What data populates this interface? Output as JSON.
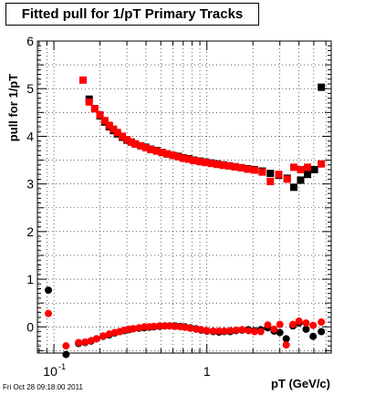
{
  "chart_data": {
    "type": "scatter",
    "title": "Fitted pull for 1/pT  Primary Tracks",
    "xlabel": "pT (GeV/c)",
    "ylabel": "pull for 1/pT",
    "xscale": "log",
    "xlim": [
      0.078,
      6.5
    ],
    "ylim": [
      -0.55,
      6.0
    ],
    "xtick_labels": [
      {
        "value": 0.1,
        "base": "10",
        "exp": "-1"
      },
      {
        "value": 1,
        "base": "1",
        "exp": ""
      }
    ],
    "yticks": [
      0,
      1,
      2,
      3,
      4,
      5,
      6
    ],
    "grid": true,
    "series": [
      {
        "color": "#000000",
        "marker": "square",
        "points": [
          [
            0.17,
            4.78
          ],
          [
            0.185,
            4.58
          ],
          [
            0.2,
            4.43
          ],
          [
            0.215,
            4.3
          ],
          [
            0.23,
            4.2
          ],
          [
            0.245,
            4.12
          ],
          [
            0.26,
            4.05
          ],
          [
            0.28,
            3.98
          ],
          [
            0.3,
            3.92
          ],
          [
            0.32,
            3.88
          ],
          [
            0.34,
            3.84
          ],
          [
            0.37,
            3.8
          ],
          [
            0.4,
            3.77
          ],
          [
            0.43,
            3.73
          ],
          [
            0.47,
            3.7
          ],
          [
            0.51,
            3.66
          ],
          [
            0.55,
            3.63
          ],
          [
            0.6,
            3.6
          ],
          [
            0.65,
            3.58
          ],
          [
            0.7,
            3.55
          ],
          [
            0.76,
            3.53
          ],
          [
            0.82,
            3.5
          ],
          [
            0.9,
            3.48
          ],
          [
            0.98,
            3.46
          ],
          [
            1.07,
            3.44
          ],
          [
            1.17,
            3.42
          ],
          [
            1.28,
            3.4
          ],
          [
            1.4,
            3.38
          ],
          [
            1.53,
            3.36
          ],
          [
            1.68,
            3.34
          ],
          [
            1.85,
            3.32
          ],
          [
            2.05,
            3.3
          ],
          [
            2.3,
            3.27
          ],
          [
            2.6,
            3.22
          ],
          [
            2.95,
            3.18
          ],
          [
            3.35,
            3.12
          ],
          [
            3.7,
            2.93
          ],
          [
            4.1,
            3.08
          ],
          [
            4.55,
            3.2
          ],
          [
            5.05,
            3.3
          ],
          [
            5.6,
            5.03
          ]
        ]
      },
      {
        "color": "#ff0000",
        "marker": "square",
        "points": [
          [
            0.155,
            5.18
          ],
          [
            0.17,
            4.72
          ],
          [
            0.185,
            4.58
          ],
          [
            0.2,
            4.45
          ],
          [
            0.215,
            4.33
          ],
          [
            0.23,
            4.23
          ],
          [
            0.245,
            4.15
          ],
          [
            0.26,
            4.08
          ],
          [
            0.28,
            4.0
          ],
          [
            0.3,
            3.93
          ],
          [
            0.32,
            3.88
          ],
          [
            0.34,
            3.84
          ],
          [
            0.37,
            3.8
          ],
          [
            0.4,
            3.76
          ],
          [
            0.43,
            3.72
          ],
          [
            0.47,
            3.69
          ],
          [
            0.51,
            3.66
          ],
          [
            0.55,
            3.63
          ],
          [
            0.6,
            3.6
          ],
          [
            0.65,
            3.57
          ],
          [
            0.7,
            3.54
          ],
          [
            0.76,
            3.52
          ],
          [
            0.82,
            3.49
          ],
          [
            0.9,
            3.47
          ],
          [
            0.98,
            3.45
          ],
          [
            1.07,
            3.43
          ],
          [
            1.17,
            3.41
          ],
          [
            1.28,
            3.39
          ],
          [
            1.4,
            3.38
          ],
          [
            1.53,
            3.36
          ],
          [
            1.68,
            3.34
          ],
          [
            1.85,
            3.31
          ],
          [
            2.05,
            3.29
          ],
          [
            2.3,
            3.25
          ],
          [
            2.6,
            3.05
          ],
          [
            2.95,
            3.2
          ],
          [
            3.35,
            3.1
          ],
          [
            3.7,
            3.35
          ],
          [
            4.1,
            3.3
          ],
          [
            4.55,
            3.35
          ],
          [
            5.6,
            3.42
          ]
        ]
      },
      {
        "color": "#000000",
        "marker": "circle",
        "points": [
          [
            0.092,
            0.77
          ],
          [
            0.12,
            -0.58
          ],
          [
            0.145,
            -0.35
          ],
          [
            0.16,
            -0.33
          ],
          [
            0.175,
            -0.3
          ],
          [
            0.19,
            -0.25
          ],
          [
            0.21,
            -0.2
          ],
          [
            0.23,
            -0.17
          ],
          [
            0.25,
            -0.13
          ],
          [
            0.27,
            -0.1
          ],
          [
            0.29,
            -0.08
          ],
          [
            0.31,
            -0.06
          ],
          [
            0.33,
            -0.04
          ],
          [
            0.36,
            -0.03
          ],
          [
            0.39,
            -0.02
          ],
          [
            0.42,
            -0.01
          ],
          [
            0.45,
            0.0
          ],
          [
            0.49,
            0.01
          ],
          [
            0.53,
            0.02
          ],
          [
            0.57,
            0.02
          ],
          [
            0.62,
            0.02
          ],
          [
            0.67,
            0.01
          ],
          [
            0.72,
            0.0
          ],
          [
            0.78,
            -0.02
          ],
          [
            0.85,
            -0.04
          ],
          [
            0.92,
            -0.07
          ],
          [
            1.0,
            -0.09
          ],
          [
            1.1,
            -0.1
          ],
          [
            1.2,
            -0.11
          ],
          [
            1.3,
            -0.1
          ],
          [
            1.42,
            -0.1
          ],
          [
            1.55,
            -0.08
          ],
          [
            1.7,
            -0.07
          ],
          [
            1.87,
            -0.06
          ],
          [
            2.05,
            -0.08
          ],
          [
            2.25,
            -0.06
          ],
          [
            2.5,
            -0.02
          ],
          [
            2.75,
            -0.09
          ],
          [
            3.0,
            -0.12
          ],
          [
            3.3,
            -0.25
          ],
          [
            3.65,
            0.02
          ],
          [
            4.0,
            0.08
          ],
          [
            4.45,
            -0.05
          ],
          [
            4.95,
            -0.2
          ],
          [
            5.6,
            -0.1
          ]
        ]
      },
      {
        "color": "#ff0000",
        "marker": "circle",
        "points": [
          [
            0.092,
            0.28
          ],
          [
            0.12,
            -0.4
          ],
          [
            0.145,
            -0.33
          ],
          [
            0.16,
            -0.32
          ],
          [
            0.175,
            -0.29
          ],
          [
            0.19,
            -0.25
          ],
          [
            0.21,
            -0.19
          ],
          [
            0.23,
            -0.15
          ],
          [
            0.25,
            -0.12
          ],
          [
            0.27,
            -0.1
          ],
          [
            0.29,
            -0.07
          ],
          [
            0.31,
            -0.05
          ],
          [
            0.33,
            -0.04
          ],
          [
            0.36,
            -0.02
          ],
          [
            0.39,
            0.0
          ],
          [
            0.42,
            0.0
          ],
          [
            0.45,
            0.01
          ],
          [
            0.49,
            0.02
          ],
          [
            0.53,
            0.02
          ],
          [
            0.57,
            0.02
          ],
          [
            0.62,
            0.01
          ],
          [
            0.67,
            0.0
          ],
          [
            0.72,
            -0.01
          ],
          [
            0.78,
            -0.03
          ],
          [
            0.85,
            -0.05
          ],
          [
            0.92,
            -0.06
          ],
          [
            1.0,
            -0.08
          ],
          [
            1.1,
            -0.09
          ],
          [
            1.2,
            -0.09
          ],
          [
            1.3,
            -0.09
          ],
          [
            1.42,
            -0.08
          ],
          [
            1.55,
            -0.07
          ],
          [
            1.7,
            -0.06
          ],
          [
            1.87,
            -0.08
          ],
          [
            2.05,
            -0.1
          ],
          [
            2.25,
            -0.1
          ],
          [
            2.5,
            0.04
          ],
          [
            2.75,
            -0.05
          ],
          [
            3.0,
            0.05
          ],
          [
            3.3,
            -0.38
          ],
          [
            3.65,
            0.05
          ],
          [
            4.0,
            0.12
          ],
          [
            4.45,
            0.08
          ],
          [
            4.95,
            0.03
          ],
          [
            5.6,
            0.1
          ]
        ]
      }
    ]
  },
  "footer": {
    "timestamp": "Fri Oct 28 09:18:00 2011"
  }
}
